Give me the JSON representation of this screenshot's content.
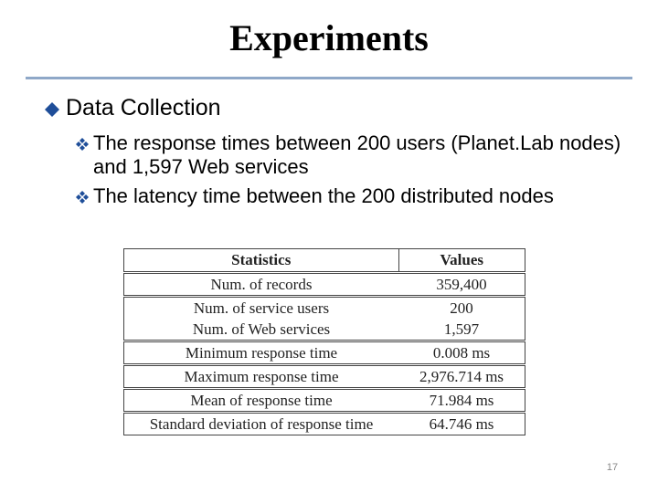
{
  "title": "Experiments",
  "bullets": [
    {
      "text": "Data Collection",
      "subbullets": [
        "The response times between 200 users (Planet.Lab nodes) and 1,597 Web services",
        "The latency time between the 200 distributed nodes"
      ]
    }
  ],
  "table": {
    "header": [
      "Statistics",
      "Values"
    ],
    "rows": [
      [
        "Num. of records",
        "359,400"
      ],
      [
        "Num. of service users",
        "200"
      ],
      [
        "Num. of Web services",
        "1,597"
      ],
      [
        "Minimum response time",
        "0.008 ms"
      ],
      [
        "Maximum response time",
        "2,976.714 ms"
      ],
      [
        "Mean of response time",
        "71.984 ms"
      ],
      [
        "Standard deviation of response time",
        "64.746 ms"
      ]
    ]
  },
  "page_number": "17"
}
